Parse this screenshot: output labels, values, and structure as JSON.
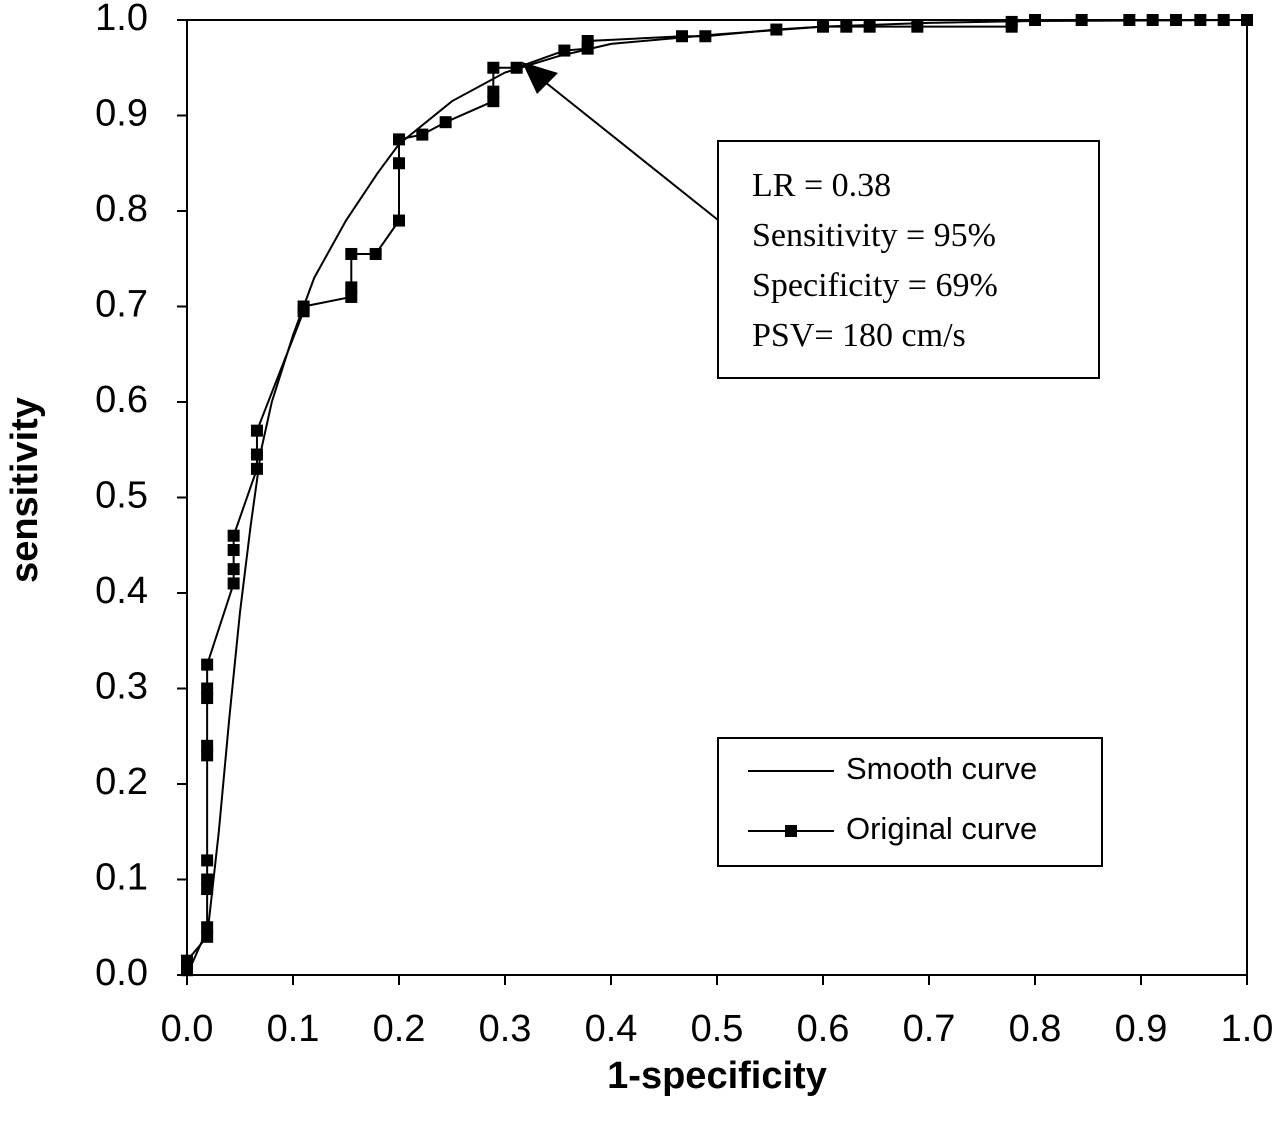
{
  "chart_data": {
    "type": "line",
    "xlabel": "1-specificity",
    "ylabel": "sensitivity",
    "xlim": [
      0,
      1
    ],
    "ylim": [
      0,
      1
    ],
    "xticks": [
      {
        "value": 0,
        "label": "0.0"
      },
      0.1,
      0.2,
      0.3,
      0.4,
      0.5,
      0.6,
      0.7,
      0.8,
      0.9,
      {
        "value": 1,
        "label": "1.0"
      }
    ],
    "yticks": [
      {
        "value": 0,
        "label": "0.0"
      },
      0.1,
      0.2,
      0.3,
      0.4,
      0.5,
      0.6,
      0.7,
      0.8,
      0.9,
      {
        "value": 1,
        "label": "1.0"
      }
    ],
    "grid": false,
    "legend": "lower right",
    "annotation": [
      "LR = 0.38",
      "Sensitivity = 95%",
      "Specificity = 69%",
      "PSV= 180 cm/s"
    ],
    "series": [
      {
        "name": "Smooth curve",
        "color": "#000000",
        "marker": "none",
        "x": [
          0,
          0.02,
          0.03,
          0.04,
          0.05,
          0.06,
          0.07,
          0.08,
          0.1,
          0.12,
          0.15,
          0.18,
          0.2,
          0.25,
          0.3,
          0.35,
          0.4,
          0.5,
          0.6,
          0.7,
          0.8,
          1
        ],
        "values": [
          0,
          0.05,
          0.15,
          0.27,
          0.38,
          0.47,
          0.55,
          0.6,
          0.67,
          0.73,
          0.79,
          0.84,
          0.87,
          0.915,
          0.945,
          0.962,
          0.975,
          0.985,
          0.993,
          0.997,
          0.999,
          1
        ]
      },
      {
        "name": "Original curve",
        "color": "#000000",
        "marker": "square",
        "x": [
          0,
          0,
          0.019,
          0.019,
          0.019,
          0.019,
          0.019,
          0.019,
          0.019,
          0.019,
          0.019,
          0.019,
          0.044,
          0.044,
          0.044,
          0.044,
          0.066,
          0.066,
          0.066,
          0.11,
          0.11,
          0.155,
          0.155,
          0.155,
          0.178,
          0.2,
          0.2,
          0.2,
          0.222,
          0.244,
          0.289,
          0.289,
          0.289,
          0.311,
          0.356,
          0.378,
          0.378,
          0.467,
          0.489,
          0.556,
          0.6,
          0.622,
          0.644,
          0.689,
          0.778,
          0.778,
          0.8,
          0.844,
          0.889,
          0.911,
          0.933,
          0.956,
          0.978,
          1
        ],
        "values": [
          0.005,
          0.015,
          0.04,
          0.05,
          0.09,
          0.1,
          0.12,
          0.23,
          0.24,
          0.29,
          0.3,
          0.325,
          0.41,
          0.425,
          0.445,
          0.46,
          0.53,
          0.545,
          0.57,
          0.695,
          0.7,
          0.71,
          0.72,
          0.755,
          0.755,
          0.79,
          0.85,
          0.875,
          0.88,
          0.893,
          0.915,
          0.925,
          0.95,
          0.95,
          0.968,
          0.97,
          0.978,
          0.983,
          0.983,
          0.99,
          0.993,
          0.993,
          0.993,
          0.993,
          0.993,
          0.998,
          1,
          1,
          1,
          1,
          1,
          1,
          1,
          1
        ]
      }
    ]
  }
}
